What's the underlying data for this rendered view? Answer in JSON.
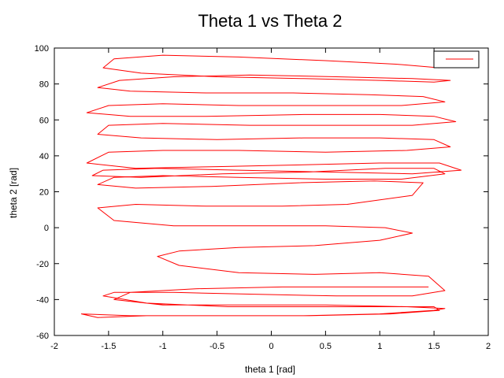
{
  "chart_data": {
    "type": "line",
    "title": "Theta 1 vs Theta 2",
    "xlabel": "theta 1  [rad]",
    "ylabel": "theta 2  [rad]",
    "xlim": [
      -2,
      2
    ],
    "ylim": [
      -60,
      100
    ],
    "xticks": [
      -2,
      -1.5,
      -1,
      -0.5,
      0,
      0.5,
      1,
      1.5,
      2
    ],
    "yticks": [
      -60,
      -40,
      -20,
      0,
      20,
      40,
      60,
      80,
      100
    ],
    "xtick_labels": [
      "-2",
      "-1.5",
      "-1",
      "-0.5",
      "0",
      "0.5",
      "1",
      "1.5",
      "2"
    ],
    "ytick_labels": [
      "-60",
      "-40",
      "-20",
      "0",
      "20",
      "40",
      "60",
      "80",
      "100"
    ],
    "grid": false,
    "legend": {
      "position": "top-right",
      "entries": [
        ""
      ]
    },
    "series": [
      {
        "color": "#ff0000",
        "x": [
          1.55,
          1.15,
          0.5,
          -0.3,
          -1.0,
          -1.45,
          -1.55,
          -1.2,
          -0.5,
          0.3,
          1.0,
          1.5,
          1.65,
          1.3,
          0.6,
          -0.2,
          -0.9,
          -1.4,
          -1.6,
          -1.3,
          -0.6,
          0.2,
          0.9,
          1.4,
          1.6,
          1.2,
          0.5,
          -0.3,
          -1.0,
          -1.5,
          -1.7,
          -1.3,
          -0.6,
          0.3,
          1.0,
          1.5,
          1.7,
          1.3,
          0.6,
          -0.2,
          -1.0,
          -1.5,
          -1.6,
          -1.2,
          -0.5,
          0.3,
          1.0,
          1.5,
          1.65,
          1.25,
          0.5,
          -0.3,
          -1.0,
          -1.5,
          -1.7,
          -1.25,
          -0.5,
          0.3,
          1.0,
          1.55,
          1.75,
          1.3,
          0.5,
          -0.3,
          -1.05,
          -1.55,
          -1.65,
          -1.2,
          -0.45,
          0.35,
          1.05,
          1.5,
          1.6,
          1.2,
          0.5,
          -0.3,
          -1.0,
          -1.45,
          -1.6,
          -1.25,
          -0.55,
          0.25,
          0.95,
          1.4,
          1.3,
          0.7,
          0.1,
          -0.6,
          -1.25,
          -1.6,
          -1.45,
          -0.9,
          -0.2,
          0.5,
          1.05,
          1.3,
          1.0,
          0.4,
          -0.3,
          -0.85,
          -1.05,
          -0.85,
          -0.3,
          0.4,
          1.0,
          1.45,
          1.6,
          1.3,
          0.6,
          -0.2,
          -0.9,
          -1.45,
          -1.55,
          -1.15,
          -0.4,
          0.4,
          1.05,
          1.5,
          1.55,
          1.1,
          0.35,
          -0.45,
          -1.15,
          -1.6,
          -1.75,
          -1.3,
          -0.55,
          0.3,
          1.0,
          1.5,
          1.6,
          1.25,
          0.5,
          -0.3,
          -1.0,
          -1.45,
          -1.3,
          -0.7,
          0.1,
          0.8,
          1.3,
          1.45
        ],
        "y": [
          89,
          91,
          93,
          95,
          96,
          94,
          89,
          86,
          84,
          83,
          82,
          81,
          82,
          83,
          84,
          85,
          84,
          82,
          78,
          76,
          75,
          75,
          74,
          73,
          70,
          68,
          68,
          68,
          69,
          68,
          64,
          62,
          62,
          63,
          63,
          62,
          59,
          57,
          57,
          57,
          58,
          57,
          52,
          50,
          49,
          50,
          50,
          49,
          45,
          43,
          42,
          43,
          43,
          42,
          36,
          33,
          34,
          35,
          36,
          36,
          32,
          30,
          31,
          32,
          33,
          32,
          29,
          28,
          30,
          31,
          33,
          33,
          30,
          27,
          27,
          28,
          29,
          28,
          24,
          22,
          23,
          25,
          26,
          25,
          18,
          13,
          12,
          12,
          13,
          11,
          4,
          1,
          1,
          1,
          0,
          -3,
          -7,
          -10,
          -11,
          -13,
          -16,
          -21,
          -25,
          -26,
          -25,
          -27,
          -35,
          -38,
          -38,
          -37,
          -36,
          -36,
          -38,
          -42,
          -44,
          -44,
          -44,
          -44,
          -46,
          -48,
          -49,
          -49,
          -49,
          -50,
          -48,
          -49,
          -49,
          -49,
          -48,
          -46,
          -45,
          -44,
          -43,
          -43,
          -43,
          -40,
          -36,
          -34,
          -33,
          -33,
          -33,
          -33
        ]
      }
    ]
  }
}
